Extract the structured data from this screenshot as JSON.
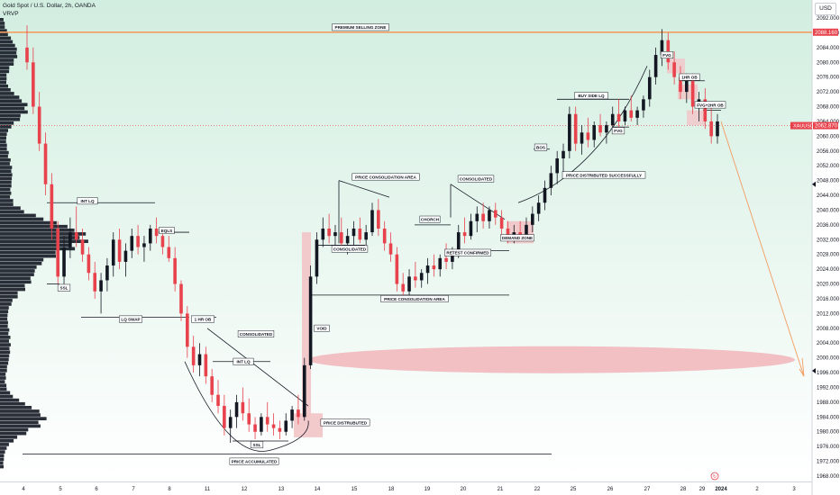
{
  "header": {
    "title": "Gold Spot / U.S. Dollar, 2h, OANDA",
    "indicator": "VRVP",
    "currency": "USD"
  },
  "colors": {
    "background_top": "#d2eee0",
    "background_bottom": "#ffffff",
    "bull": "#131722",
    "bear": "#e8424c",
    "resistance_line": "#f29d62",
    "volume_profile": "#131722",
    "ellipse": "#f1b4b8",
    "zone": "#f2c4c7",
    "projection": "#f29d62"
  },
  "chart_data": {
    "type": "candlestick",
    "symbol": "XAUUSD",
    "y_ticks": [
      1968,
      1972,
      1976,
      1980,
      1984,
      1988,
      1992,
      1996,
      2000,
      2004,
      2008,
      2012,
      2016,
      2020,
      2024,
      2028,
      2032,
      2036,
      2040,
      2044,
      2048,
      2052,
      2056,
      2060,
      2064,
      2068,
      2072,
      2076,
      2080,
      2084,
      2088,
      2092
    ],
    "x_ticks": [
      "4",
      "5",
      "6",
      "7",
      "8",
      "11",
      "12",
      "13",
      "14",
      "15",
      "18",
      "19",
      "20",
      "21",
      "22",
      "25",
      "26",
      "27",
      "28",
      "29",
      "2024",
      "2",
      "3"
    ],
    "ylim": [
      1966,
      2094
    ],
    "price_labels": [
      {
        "label": "2088.160",
        "value": 2088.16
      },
      {
        "label": "XAUUSD",
        "value": 2062.87
      },
      {
        "label": "2062.870",
        "value": 2062.87
      }
    ],
    "resistance_level": 2088.16,
    "current_price": 2062.87,
    "candles": [
      {
        "o": 2084,
        "h": 2090,
        "l": 2078,
        "c": 2080
      },
      {
        "o": 2080,
        "h": 2084,
        "l": 2066,
        "c": 2068
      },
      {
        "o": 2068,
        "h": 2072,
        "l": 2056,
        "c": 2058
      },
      {
        "o": 2058,
        "h": 2061,
        "l": 2044,
        "c": 2047
      },
      {
        "o": 2047,
        "h": 2050,
        "l": 2032,
        "c": 2035
      },
      {
        "o": 2035,
        "h": 2037,
        "l": 2020,
        "c": 2022
      },
      {
        "o": 2022,
        "h": 2033,
        "l": 2020,
        "c": 2030
      },
      {
        "o": 2030,
        "h": 2038,
        "l": 2027,
        "c": 2034
      },
      {
        "o": 2034,
        "h": 2041,
        "l": 2030,
        "c": 2032
      },
      {
        "o": 2032,
        "h": 2035,
        "l": 2026,
        "c": 2028
      },
      {
        "o": 2028,
        "h": 2030,
        "l": 2021,
        "c": 2023
      },
      {
        "o": 2023,
        "h": 2026,
        "l": 2016,
        "c": 2018
      },
      {
        "o": 2018,
        "h": 2023,
        "l": 2012,
        "c": 2021
      },
      {
        "o": 2021,
        "h": 2027,
        "l": 2018,
        "c": 2025
      },
      {
        "o": 2025,
        "h": 2034,
        "l": 2022,
        "c": 2032
      },
      {
        "o": 2032,
        "h": 2035,
        "l": 2024,
        "c": 2026
      },
      {
        "o": 2026,
        "h": 2031,
        "l": 2022,
        "c": 2029
      },
      {
        "o": 2029,
        "h": 2035,
        "l": 2027,
        "c": 2033
      },
      {
        "o": 2033,
        "h": 2036,
        "l": 2028,
        "c": 2030
      },
      {
        "o": 2030,
        "h": 2033,
        "l": 2026,
        "c": 2031
      },
      {
        "o": 2031,
        "h": 2036,
        "l": 2029,
        "c": 2035
      },
      {
        "o": 2035,
        "h": 2038,
        "l": 2031,
        "c": 2033
      },
      {
        "o": 2033,
        "h": 2034,
        "l": 2028,
        "c": 2030
      },
      {
        "o": 2030,
        "h": 2033,
        "l": 2026,
        "c": 2027
      },
      {
        "o": 2027,
        "h": 2030,
        "l": 2018,
        "c": 2020
      },
      {
        "o": 2020,
        "h": 2021,
        "l": 2010,
        "c": 2012
      },
      {
        "o": 2012,
        "h": 2014,
        "l": 2000,
        "c": 2003
      },
      {
        "o": 2003,
        "h": 2006,
        "l": 1996,
        "c": 1998
      },
      {
        "o": 1998,
        "h": 2004,
        "l": 1995,
        "c": 2001
      },
      {
        "o": 2001,
        "h": 2003,
        "l": 1993,
        "c": 1995
      },
      {
        "o": 1995,
        "h": 1997,
        "l": 1988,
        "c": 1990
      },
      {
        "o": 1990,
        "h": 1994,
        "l": 1985,
        "c": 1987
      },
      {
        "o": 1987,
        "h": 1990,
        "l": 1979,
        "c": 1981
      },
      {
        "o": 1981,
        "h": 1986,
        "l": 1977,
        "c": 1984
      },
      {
        "o": 1984,
        "h": 1990,
        "l": 1981,
        "c": 1988
      },
      {
        "o": 1988,
        "h": 1992,
        "l": 1983,
        "c": 1985
      },
      {
        "o": 1985,
        "h": 1989,
        "l": 1980,
        "c": 1982
      },
      {
        "o": 1982,
        "h": 1984,
        "l": 1978,
        "c": 1980
      },
      {
        "o": 1980,
        "h": 1985,
        "l": 1979,
        "c": 1984
      },
      {
        "o": 1984,
        "h": 1988,
        "l": 1980,
        "c": 1982
      },
      {
        "o": 1982,
        "h": 1985,
        "l": 1979,
        "c": 1981
      },
      {
        "o": 1981,
        "h": 1983,
        "l": 1978,
        "c": 1980
      },
      {
        "o": 1980,
        "h": 1985,
        "l": 1979,
        "c": 1983
      },
      {
        "o": 1983,
        "h": 1987,
        "l": 1981,
        "c": 1986
      },
      {
        "o": 1986,
        "h": 1990,
        "l": 1982,
        "c": 1984
      },
      {
        "o": 1984,
        "h": 2000,
        "l": 1983,
        "c": 1998
      },
      {
        "o": 1998,
        "h": 2025,
        "l": 1997,
        "c": 2022
      },
      {
        "o": 2022,
        "h": 2034,
        "l": 2020,
        "c": 2032
      },
      {
        "o": 2032,
        "h": 2038,
        "l": 2030,
        "c": 2035
      },
      {
        "o": 2035,
        "h": 2039,
        "l": 2031,
        "c": 2033
      },
      {
        "o": 2033,
        "h": 2036,
        "l": 2029,
        "c": 2034
      },
      {
        "o": 2034,
        "h": 2038,
        "l": 2030,
        "c": 2031
      },
      {
        "o": 2031,
        "h": 2035,
        "l": 2028,
        "c": 2033
      },
      {
        "o": 2033,
        "h": 2037,
        "l": 2030,
        "c": 2035
      },
      {
        "o": 2035,
        "h": 2038,
        "l": 2031,
        "c": 2032
      },
      {
        "o": 2032,
        "h": 2036,
        "l": 2030,
        "c": 2034
      },
      {
        "o": 2034,
        "h": 2042,
        "l": 2033,
        "c": 2040
      },
      {
        "o": 2040,
        "h": 2043,
        "l": 2033,
        "c": 2035
      },
      {
        "o": 2035,
        "h": 2037,
        "l": 2029,
        "c": 2031
      },
      {
        "o": 2031,
        "h": 2034,
        "l": 2026,
        "c": 2028
      },
      {
        "o": 2028,
        "h": 2030,
        "l": 2018,
        "c": 2020
      },
      {
        "o": 2020,
        "h": 2023,
        "l": 2016,
        "c": 2018
      },
      {
        "o": 2018,
        "h": 2024,
        "l": 2017,
        "c": 2022
      },
      {
        "o": 2022,
        "h": 2026,
        "l": 2019,
        "c": 2021
      },
      {
        "o": 2021,
        "h": 2024,
        "l": 2019,
        "c": 2023
      },
      {
        "o": 2023,
        "h": 2027,
        "l": 2020,
        "c": 2025
      },
      {
        "o": 2025,
        "h": 2028,
        "l": 2022,
        "c": 2024
      },
      {
        "o": 2024,
        "h": 2028,
        "l": 2022,
        "c": 2027
      },
      {
        "o": 2027,
        "h": 2031,
        "l": 2024,
        "c": 2026
      },
      {
        "o": 2026,
        "h": 2030,
        "l": 2024,
        "c": 2029
      },
      {
        "o": 2029,
        "h": 2036,
        "l": 2027,
        "c": 2034
      },
      {
        "o": 2034,
        "h": 2038,
        "l": 2031,
        "c": 2033
      },
      {
        "o": 2033,
        "h": 2039,
        "l": 2032,
        "c": 2037
      },
      {
        "o": 2037,
        "h": 2041,
        "l": 2034,
        "c": 2039
      },
      {
        "o": 2039,
        "h": 2042,
        "l": 2035,
        "c": 2037
      },
      {
        "o": 2037,
        "h": 2041,
        "l": 2035,
        "c": 2040
      },
      {
        "o": 2040,
        "h": 2042,
        "l": 2036,
        "c": 2038
      },
      {
        "o": 2038,
        "h": 2040,
        "l": 2033,
        "c": 2035
      },
      {
        "o": 2035,
        "h": 2037,
        "l": 2031,
        "c": 2033
      },
      {
        "o": 2033,
        "h": 2036,
        "l": 2031,
        "c": 2034
      },
      {
        "o": 2034,
        "h": 2037,
        "l": 2032,
        "c": 2033
      },
      {
        "o": 2033,
        "h": 2038,
        "l": 2032,
        "c": 2036
      },
      {
        "o": 2036,
        "h": 2041,
        "l": 2034,
        "c": 2039
      },
      {
        "o": 2039,
        "h": 2044,
        "l": 2037,
        "c": 2042
      },
      {
        "o": 2042,
        "h": 2048,
        "l": 2040,
        "c": 2046
      },
      {
        "o": 2046,
        "h": 2052,
        "l": 2044,
        "c": 2050
      },
      {
        "o": 2050,
        "h": 2056,
        "l": 2047,
        "c": 2054
      },
      {
        "o": 2054,
        "h": 2058,
        "l": 2050,
        "c": 2056
      },
      {
        "o": 2056,
        "h": 2068,
        "l": 2054,
        "c": 2066
      },
      {
        "o": 2066,
        "h": 2068,
        "l": 2056,
        "c": 2058
      },
      {
        "o": 2058,
        "h": 2063,
        "l": 2055,
        "c": 2061
      },
      {
        "o": 2061,
        "h": 2065,
        "l": 2057,
        "c": 2059
      },
      {
        "o": 2059,
        "h": 2064,
        "l": 2057,
        "c": 2063
      },
      {
        "o": 2063,
        "h": 2066,
        "l": 2060,
        "c": 2061
      },
      {
        "o": 2061,
        "h": 2064,
        "l": 2058,
        "c": 2063
      },
      {
        "o": 2063,
        "h": 2068,
        "l": 2061,
        "c": 2066
      },
      {
        "o": 2066,
        "h": 2070,
        "l": 2062,
        "c": 2064
      },
      {
        "o": 2064,
        "h": 2068,
        "l": 2063,
        "c": 2067
      },
      {
        "o": 2067,
        "h": 2071,
        "l": 2064,
        "c": 2065
      },
      {
        "o": 2065,
        "h": 2068,
        "l": 2063,
        "c": 2067
      },
      {
        "o": 2067,
        "h": 2071,
        "l": 2065,
        "c": 2070
      },
      {
        "o": 2070,
        "h": 2078,
        "l": 2068,
        "c": 2076
      },
      {
        "o": 2076,
        "h": 2084,
        "l": 2074,
        "c": 2082
      },
      {
        "o": 2082,
        "h": 2089,
        "l": 2079,
        "c": 2086
      },
      {
        "o": 2086,
        "h": 2088,
        "l": 2078,
        "c": 2080
      },
      {
        "o": 2080,
        "h": 2083,
        "l": 2074,
        "c": 2076
      },
      {
        "o": 2076,
        "h": 2079,
        "l": 2070,
        "c": 2072
      },
      {
        "o": 2072,
        "h": 2077,
        "l": 2069,
        "c": 2075
      },
      {
        "o": 2075,
        "h": 2077,
        "l": 2066,
        "c": 2068
      },
      {
        "o": 2068,
        "h": 2072,
        "l": 2064,
        "c": 2070
      },
      {
        "o": 2070,
        "h": 2073,
        "l": 2062,
        "c": 2064
      },
      {
        "o": 2064,
        "h": 2068,
        "l": 2058,
        "c": 2060
      },
      {
        "o": 2060,
        "h": 2066,
        "l": 2058,
        "c": 2064
      }
    ],
    "annotations": [
      {
        "text": "PREMIUM SELLING ZONE"
      },
      {
        "text": "INT LQ"
      },
      {
        "text": "SSL"
      },
      {
        "text": "EQLS"
      },
      {
        "text": "LQ SWAP"
      },
      {
        "text": "1 HR OB"
      },
      {
        "text": "CONSOLIDATED"
      },
      {
        "text": "INT LQ"
      },
      {
        "text": "SSL"
      },
      {
        "text": "PRICE ACCUMULATED"
      },
      {
        "text": "PRICE DISTRUBUTED"
      },
      {
        "text": "VOID"
      },
      {
        "text": "PRICE CONSOLIDATION AREA"
      },
      {
        "text": "CONSOLIDATED"
      },
      {
        "text": "PRICE CONSOLIDATION AREA"
      },
      {
        "text": "CHORCH"
      },
      {
        "text": "RETEST CONFIRMED"
      },
      {
        "text": "CONSOLIDATED"
      },
      {
        "text": "DEMAND ZONE"
      },
      {
        "text": "BOS"
      },
      {
        "text": "PRICE DISTRIBUTED SUCCESSFULLY"
      },
      {
        "text": "BUY SIDE LQ"
      },
      {
        "text": "FVG"
      },
      {
        "text": "FVG"
      },
      {
        "text": "1HR OB"
      },
      {
        "text": "FVG+2HR OB"
      }
    ]
  }
}
